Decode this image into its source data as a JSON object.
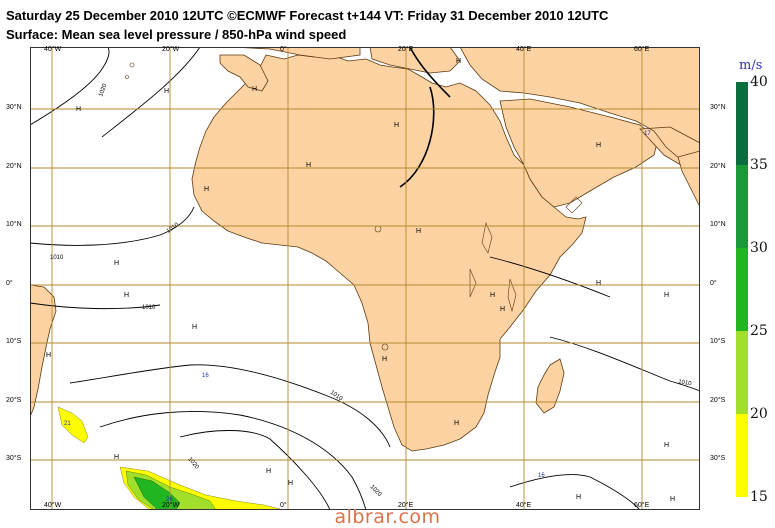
{
  "header": {
    "line1": "Saturday 25 December 2010 12UTC ©ECMWF Forecast t+144 VT: Friday 31 December 2010 12UTC",
    "line2": "Surface: Mean sea level pressure / 850-hPa wind speed"
  },
  "map": {
    "lon_labels": [
      "40°W",
      "20°W",
      "0°",
      "20°E",
      "40°E",
      "60°E"
    ],
    "lat_labels": [
      "30°N",
      "20°N",
      "10°N",
      "0°",
      "10°S",
      "20°S",
      "30°S"
    ],
    "isobar_labels": [
      "1020",
      "1010",
      "1010",
      "1010",
      "1010",
      "1010",
      "1020",
      "16",
      "17",
      "16",
      "21",
      "26"
    ],
    "pressure_centers": [
      "H",
      "H",
      "H",
      "H",
      "H",
      "H",
      "H",
      "H",
      "H",
      "H",
      "H",
      "H",
      "H",
      "H",
      "H",
      "H",
      "H",
      "H",
      "H",
      "H",
      "H",
      "H",
      "H",
      "H",
      "H",
      "H"
    ],
    "colors": {
      "land": "#fdd3a4",
      "grid": "#b58a2e",
      "coast": "#5c3a10",
      "isobar": "#000000"
    }
  },
  "legend": {
    "unit": "m/s",
    "ticks": [
      "40",
      "35",
      "30",
      "25",
      "20",
      "15"
    ],
    "bands": [
      {
        "from": 15,
        "to": 20,
        "color": "#fdfd00"
      },
      {
        "from": 20,
        "to": 25,
        "color": "#a2df2a"
      },
      {
        "from": 25,
        "to": 30,
        "color": "#21b621"
      },
      {
        "from": 30,
        "to": 35,
        "color": "#189a38"
      },
      {
        "from": 35,
        "to": 40,
        "color": "#0b6e3f"
      }
    ]
  },
  "footer": {
    "site": "albrar.com"
  }
}
